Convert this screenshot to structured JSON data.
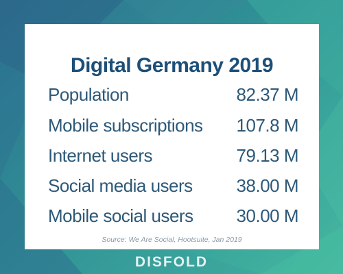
{
  "card": {
    "title": "Digital Germany 2019",
    "rows": [
      {
        "label": "Population",
        "value": "82.37 M"
      },
      {
        "label": "Mobile subscriptions",
        "value": "107.8 M"
      },
      {
        "label": "Internet users",
        "value": "79.13 M"
      },
      {
        "label": "Social media users",
        "value": "38.00 M"
      },
      {
        "label": "Mobile social users",
        "value": "30.00 M"
      }
    ],
    "source": "Source: We Are Social, Hootsuite, Jan 2019"
  },
  "brand": {
    "logo_text": "DISFOLD"
  },
  "colors": {
    "title": "#1d4f78",
    "text": "#2d5979",
    "source": "#8a9aa8",
    "background_start": "#2f6f8f",
    "background_end": "#46b8a0"
  }
}
